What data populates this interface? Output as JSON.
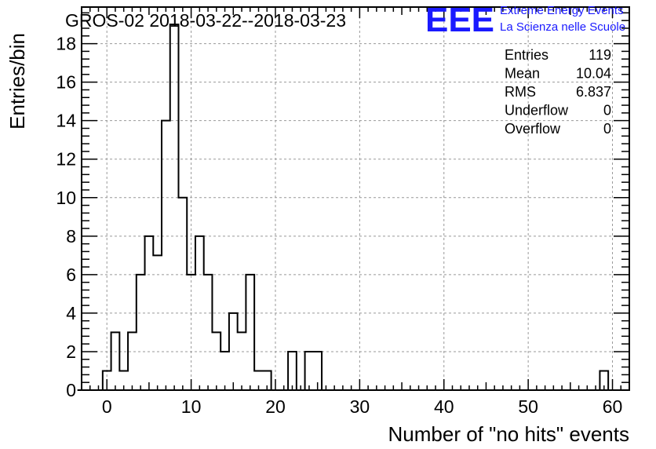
{
  "chart_data": {
    "type": "bar",
    "title": "GROS-02 2018-03-22--2018-03-23",
    "xlabel": "Number of \"no hits\" events",
    "ylabel": "Entries/bin",
    "xlim": [
      -3,
      62
    ],
    "ylim": [
      0,
      19.9
    ],
    "x_ticks": [
      0,
      10,
      20,
      30,
      40,
      50,
      60
    ],
    "y_ticks": [
      0,
      2,
      4,
      6,
      8,
      10,
      12,
      14,
      16,
      18
    ],
    "grid": true,
    "bin_width": 1,
    "bins": [
      {
        "x": 0,
        "value": 1
      },
      {
        "x": 1,
        "value": 3
      },
      {
        "x": 2,
        "value": 1
      },
      {
        "x": 3,
        "value": 3
      },
      {
        "x": 4,
        "value": 6
      },
      {
        "x": 5,
        "value": 8
      },
      {
        "x": 6,
        "value": 7
      },
      {
        "x": 7,
        "value": 14
      },
      {
        "x": 8,
        "value": 19
      },
      {
        "x": 9,
        "value": 10
      },
      {
        "x": 10,
        "value": 6
      },
      {
        "x": 11,
        "value": 8
      },
      {
        "x": 12,
        "value": 6
      },
      {
        "x": 13,
        "value": 3
      },
      {
        "x": 14,
        "value": 2
      },
      {
        "x": 15,
        "value": 4
      },
      {
        "x": 16,
        "value": 3
      },
      {
        "x": 17,
        "value": 6
      },
      {
        "x": 18,
        "value": 1
      },
      {
        "x": 19,
        "value": 1
      },
      {
        "x": 22,
        "value": 2
      },
      {
        "x": 24,
        "value": 2
      },
      {
        "x": 25,
        "value": 2
      },
      {
        "x": 59,
        "value": 1
      }
    ]
  },
  "stats": [
    {
      "label": "Entries",
      "value": "119"
    },
    {
      "label": "Mean",
      "value": "10.04"
    },
    {
      "label": "RMS",
      "value": "6.837"
    },
    {
      "label": "Underflow",
      "value": "0"
    },
    {
      "label": "Overflow",
      "value": "0"
    }
  ],
  "logo": {
    "mark": "EEE",
    "line1": "Extreme Energy Events",
    "line2": "La Scienza nelle Scuole",
    "color": "#1a1aff"
  }
}
